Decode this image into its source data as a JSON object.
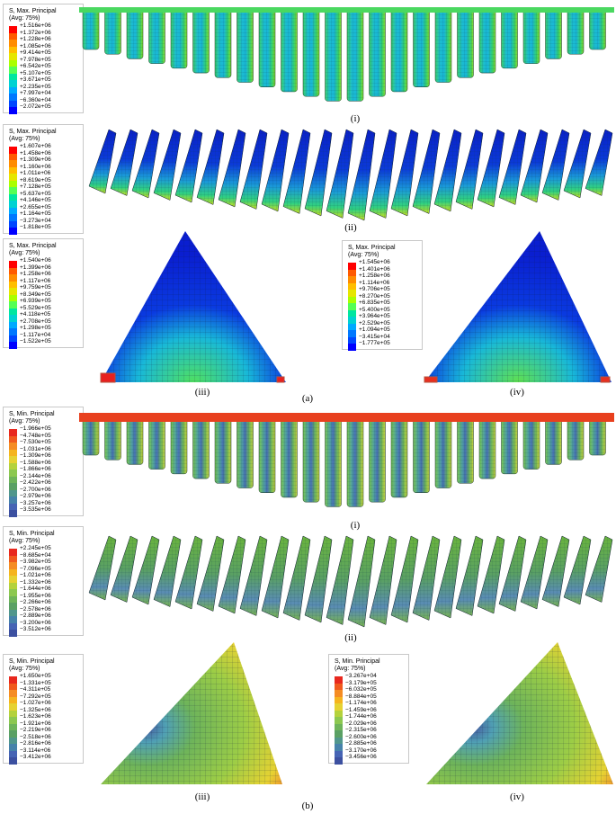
{
  "panel_a": {
    "caption": "(a)",
    "i": {
      "label": "(i)",
      "legend": {
        "title": "S, Max. Principal",
        "subtitle": "(Avg: 75%)",
        "values": [
          "+1.516e+06",
          "+1.372e+06",
          "+1.228e+06",
          "+1.085e+06",
          "+9.414e+05",
          "+7.978e+05",
          "+6.542e+05",
          "+5.107e+05",
          "+3.671e+05",
          "+2.235e+05",
          "+7.997e+04",
          "−6.360e+04",
          "−2.072e+05"
        ]
      }
    },
    "ii": {
      "label": "(ii)",
      "legend": {
        "title": "S, Max. Principal",
        "subtitle": "(Avg: 75%)",
        "values": [
          "+1.607e+06",
          "+1.458e+06",
          "+1.309e+06",
          "+1.160e+06",
          "+1.011e+06",
          "+8.619e+05",
          "+7.128e+05",
          "+5.637e+05",
          "+4.146e+05",
          "+2.655e+05",
          "+1.164e+05",
          "−3.273e+04",
          "−1.818e+05"
        ]
      }
    },
    "iii": {
      "label": "(iii)",
      "legend": {
        "title": "S, Max. Principal",
        "subtitle": "(Avg: 75%)",
        "values": [
          "+1.540e+06",
          "+1.399e+06",
          "+1.258e+06",
          "+1.117e+06",
          "+9.759e+05",
          "+8.349e+05",
          "+6.939e+05",
          "+5.529e+05",
          "+4.118e+05",
          "+2.708e+05",
          "+1.298e+05",
          "−1.117e+04",
          "−1.522e+05"
        ]
      }
    },
    "iv": {
      "label": "(iv)",
      "legend": {
        "title": "S, Max. Principal",
        "subtitle": "(Avg: 75%)",
        "values": [
          "+1.545e+06",
          "+1.401e+06",
          "+1.258e+06",
          "+1.114e+06",
          "+9.706e+05",
          "+8.270e+05",
          "+6.835e+05",
          "+5.400e+05",
          "+3.964e+05",
          "+2.529e+05",
          "+1.094e+05",
          "−3.415e+04",
          "−1.777e+05"
        ]
      }
    }
  },
  "panel_b": {
    "caption": "(b)",
    "i": {
      "label": "(i)",
      "legend": {
        "title": "S, Min. Principal",
        "subtitle": "(Avg: 75%)",
        "values": [
          "−1.966e+05",
          "−4.748e+05",
          "−7.530e+05",
          "−1.031e+06",
          "−1.309e+06",
          "−1.588e+06",
          "−1.866e+06",
          "−2.144e+06",
          "−2.422e+06",
          "−2.700e+06",
          "−2.979e+06",
          "−3.257e+06",
          "−3.535e+06"
        ]
      }
    },
    "ii": {
      "label": "(ii)",
      "legend": {
        "title": "S, Min. Principal",
        "subtitle": "(Avg: 75%)",
        "values": [
          "+2.245e+05",
          "−8.685e+04",
          "−3.982e+05",
          "−7.096e+05",
          "−1.021e+06",
          "−1.332e+06",
          "−1.644e+06",
          "−1.955e+06",
          "−2.266e+06",
          "−2.578e+06",
          "−2.889e+06",
          "−3.200e+06",
          "−3.512e+06"
        ]
      }
    },
    "iii": {
      "label": "(iii)",
      "legend": {
        "title": "S, Min. Principal",
        "subtitle": "(Avg: 75%)",
        "values": [
          "+1.650e+05",
          "−1.331e+05",
          "−4.311e+05",
          "−7.292e+05",
          "−1.027e+06",
          "−1.325e+06",
          "−1.623e+06",
          "−1.921e+06",
          "−2.219e+06",
          "−2.518e+06",
          "−2.816e+06",
          "−3.114e+06",
          "−3.412e+06"
        ]
      }
    },
    "iv": {
      "label": "(iv)",
      "legend": {
        "title": "S, Min. Principal",
        "subtitle": "(Avg: 75%)",
        "values": [
          "−3.267e+04",
          "−3.179e+05",
          "−6.032e+05",
          "−8.884e+05",
          "−1.174e+06",
          "−1.459e+06",
          "−1.744e+06",
          "−2.029e+06",
          "−2.315e+06",
          "−2.600e+06",
          "−2.885e+06",
          "−3.170e+06",
          "−3.456e+06"
        ]
      }
    }
  },
  "colors": {
    "max_scale": [
      "#ff0000",
      "#ff5a00",
      "#ff8c00",
      "#ffbe00",
      "#e6e600",
      "#aaff00",
      "#55ff55",
      "#00e6a0",
      "#00d2d2",
      "#00aaff",
      "#0078ff",
      "#0046ff",
      "#0000ff"
    ],
    "min_scale": [
      "#e8281e",
      "#f05a1e",
      "#f58c23",
      "#f5b41e",
      "#e6d232",
      "#b4d23c",
      "#8cc850",
      "#6eb45a",
      "#5aa064",
      "#50968c",
      "#4682aa",
      "#4664b4",
      "#3c50a0"
    ]
  }
}
